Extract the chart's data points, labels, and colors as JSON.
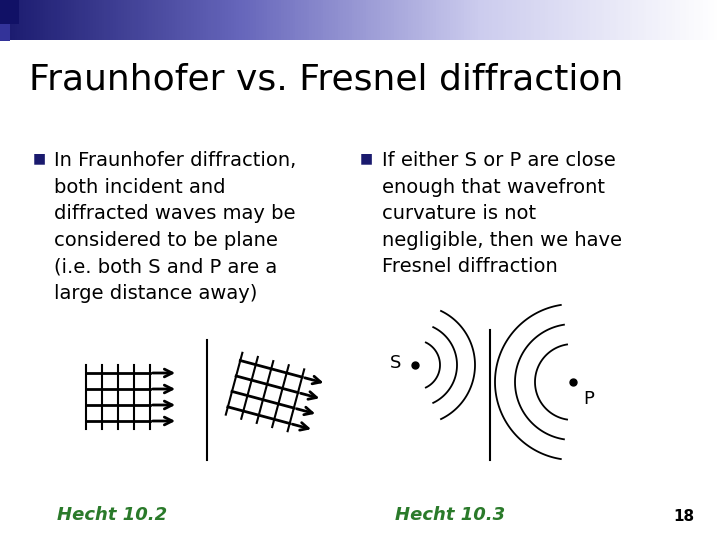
{
  "title": "Fraunhofer vs. Fresnel diffraction",
  "title_fontsize": 26,
  "background_color": "#ffffff",
  "header_dark": "#1a1a6e",
  "header_mid": "#6666bb",
  "header_light": "#ccccee",
  "bullet_color": "#1a1a6e",
  "text_color": "#000000",
  "green_color": "#2a7a2a",
  "bullet1_lines": [
    "In Fraunhofer diffraction,",
    "both incident and",
    "diffracted waves may be",
    "considered to be plane",
    "(i.e. both S and P are a",
    "large distance away)"
  ],
  "bullet2_lines": [
    "If either S or P are close",
    "enough that wavefront",
    "curvature is not",
    "negligible, then we have",
    "Fresnel diffraction"
  ],
  "hecht1": "Hecht 10.2",
  "hecht2": "Hecht 10.3",
  "page_num": "18",
  "text_fontsize": 14.0,
  "hecht_fontsize": 13.0
}
